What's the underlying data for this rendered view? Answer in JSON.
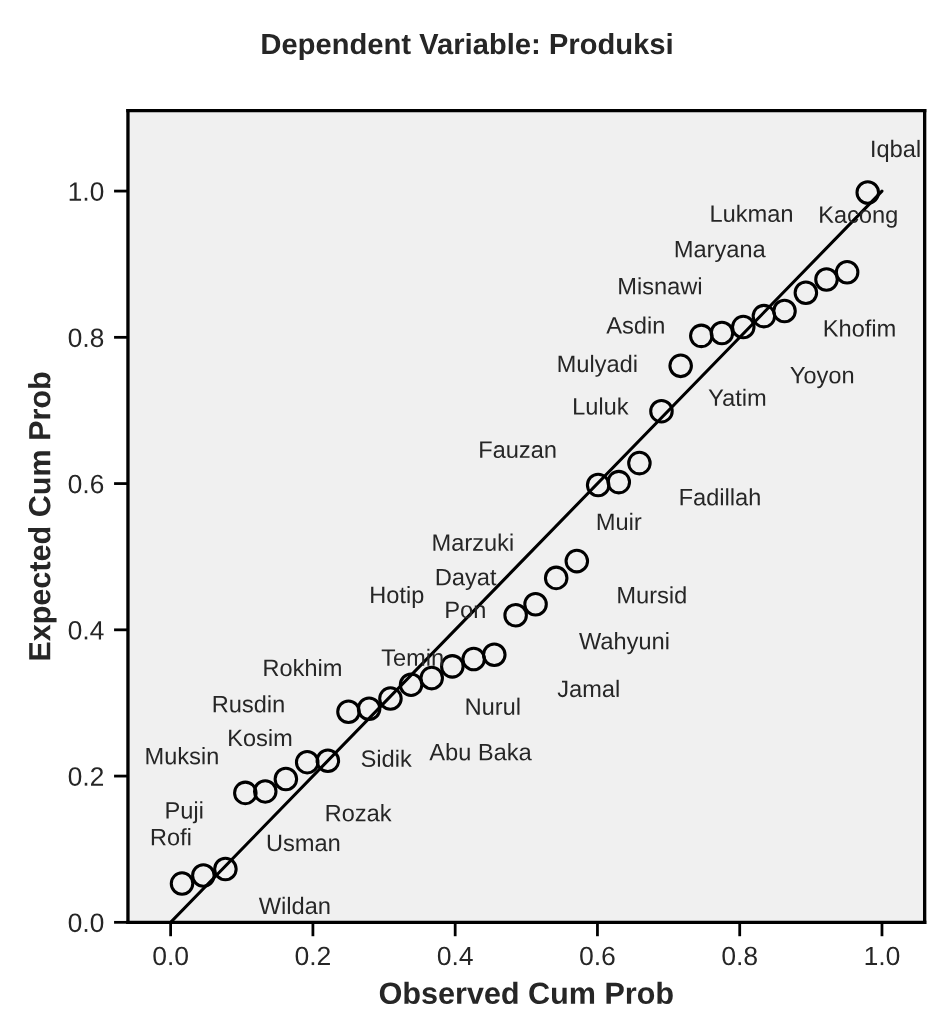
{
  "chart_data": {
    "type": "scatter",
    "title": "Dependent Variable: Produksi",
    "xlabel": "Observed Cum Prob",
    "ylabel": "Expected Cum Prob",
    "xlim": [
      -0.06,
      1.06
    ],
    "ylim": [
      0.0,
      1.11
    ],
    "xticks": [
      {
        "value": 0,
        "label": "0.0"
      },
      {
        "value": 0.2,
        "label": "0.2"
      },
      {
        "value": 0.4,
        "label": "0.4"
      },
      {
        "value": 0.6,
        "label": "0.6"
      },
      {
        "value": 0.8,
        "label": "0.8"
      },
      {
        "value": 1,
        "label": "1.0"
      }
    ],
    "yticks": [
      {
        "value": 0,
        "label": "0.0"
      },
      {
        "value": 0.2,
        "label": "0.2"
      },
      {
        "value": 0.4,
        "label": "0.4"
      },
      {
        "value": 0.6,
        "label": "0.6"
      },
      {
        "value": 0.8,
        "label": "0.8"
      },
      {
        "value": 1,
        "label": "1.0"
      }
    ],
    "grid": false,
    "legend": false,
    "marker": "circle",
    "series": [
      {
        "color": "#000000",
        "x": [
          0.016,
          0.046,
          0.077,
          0.105,
          0.133,
          0.162,
          0.192,
          0.221,
          0.25,
          0.279,
          0.309,
          0.338,
          0.367,
          0.396,
          0.426,
          0.455,
          0.485,
          0.513,
          0.542,
          0.571,
          0.601,
          0.63,
          0.659,
          0.69,
          0.717,
          0.746,
          0.775,
          0.805,
          0.834,
          0.863,
          0.893,
          0.922,
          0.951,
          0.98
        ],
        "values": [
          0.053,
          0.064,
          0.073,
          0.177,
          0.179,
          0.196,
          0.219,
          0.221,
          0.288,
          0.292,
          0.306,
          0.325,
          0.334,
          0.35,
          0.36,
          0.366,
          0.42,
          0.435,
          0.471,
          0.494,
          0.598,
          0.602,
          0.628,
          0.699,
          0.761,
          0.802,
          0.806,
          0.814,
          0.829,
          0.836,
          0.861,
          0.879,
          0.889,
          0.998
        ]
      },
      {
        "type": "line",
        "marker": "none",
        "color": "#000000",
        "x": [
          0,
          1
        ],
        "values": [
          0,
          1
        ]
      }
    ],
    "annotations": [
      {
        "text": "Rofi",
        "x": 0.016,
        "y": 0.053
      },
      {
        "text": "Usman",
        "x": 0.046,
        "y": 0.064
      },
      {
        "text": "Wildan",
        "x": 0.077,
        "y": 0.073
      },
      {
        "text": "Puji",
        "x": 0.105,
        "y": 0.177
      },
      {
        "text": "Muksin",
        "x": 0.133,
        "y": 0.179
      },
      {
        "text": "Rozak",
        "x": 0.162,
        "y": 0.196
      },
      {
        "text": "Kosim",
        "x": 0.192,
        "y": 0.219
      },
      {
        "text": "Sidik",
        "x": 0.221,
        "y": 0.221
      },
      {
        "text": "Rusdin",
        "x": 0.25,
        "y": 0.288
      },
      {
        "text": "Rokhim",
        "x": 0.279,
        "y": 0.292
      },
      {
        "text": "Temin",
        "x": 0.309,
        "y": 0.306
      },
      {
        "text": "Abu Baka",
        "x": 0.338,
        "y": 0.325
      },
      {
        "text": "Nurul",
        "x": 0.367,
        "y": 0.334
      },
      {
        "text": "Hotip",
        "x": 0.396,
        "y": 0.35
      },
      {
        "text": "Pon",
        "x": 0.426,
        "y": 0.36
      },
      {
        "text": "Jamal",
        "x": 0.455,
        "y": 0.366
      },
      {
        "text": "Dayat",
        "x": 0.485,
        "y": 0.42
      },
      {
        "text": "Wahyuni",
        "x": 0.513,
        "y": 0.435
      },
      {
        "text": "Marzuki",
        "x": 0.542,
        "y": 0.471
      },
      {
        "text": "Mursid",
        "x": 0.571,
        "y": 0.494
      },
      {
        "text": "Fauzan",
        "x": 0.601,
        "y": 0.598
      },
      {
        "text": "Muir",
        "x": 0.63,
        "y": 0.602
      },
      {
        "text": "Fadillah",
        "x": 0.659,
        "y": 0.628
      },
      {
        "text": "Luluk",
        "x": 0.69,
        "y": 0.699
      },
      {
        "text": "Mulyadi",
        "x": 0.717,
        "y": 0.761
      },
      {
        "text": "Yatim",
        "x": 0.746,
        "y": 0.802
      },
      {
        "text": "Asdin",
        "x": 0.775,
        "y": 0.806
      },
      {
        "text": "Misnawi",
        "x": 0.805,
        "y": 0.814
      },
      {
        "text": "Yoyon",
        "x": 0.834,
        "y": 0.829
      },
      {
        "text": "Khofim",
        "x": 0.863,
        "y": 0.836
      },
      {
        "text": "Maryana",
        "x": 0.893,
        "y": 0.861
      },
      {
        "text": "Lukman",
        "x": 0.922,
        "y": 0.879
      },
      {
        "text": "Kacong",
        "x": 0.951,
        "y": 0.889
      },
      {
        "text": "Iqbal",
        "x": 0.98,
        "y": 0.998
      }
    ]
  }
}
